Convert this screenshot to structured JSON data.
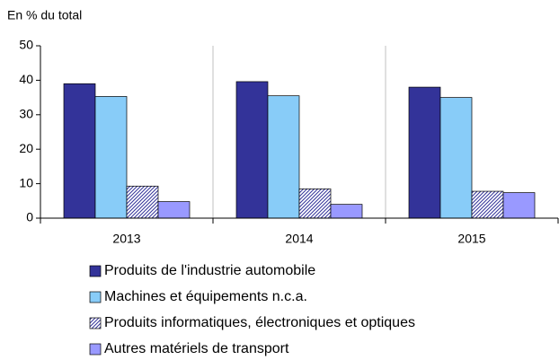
{
  "chart_data": {
    "type": "bar",
    "y_label": "En % du total",
    "categories": [
      "2013",
      "2014",
      "2015"
    ],
    "series": [
      {
        "name": "Produits de l'industrie automobile",
        "color": "#333399",
        "values": [
          39,
          39.6,
          38
        ]
      },
      {
        "name": "Machines et équipements n.c.a.",
        "color": "#88ccf8",
        "values": [
          35.3,
          35.5,
          35
        ]
      },
      {
        "name": "Produits informatiques, électroniques et optiques",
        "color": "#333399",
        "hatch": true,
        "values": [
          9.3,
          8.5,
          7.8
        ]
      },
      {
        "name": "Autres matériels de transport",
        "color": "#9999ff",
        "values": [
          4.8,
          4.0,
          7.4
        ]
      }
    ],
    "ylim": [
      0,
      50
    ],
    "yticks": [
      0,
      10,
      20,
      30,
      40,
      50
    ],
    "grid": "x"
  }
}
